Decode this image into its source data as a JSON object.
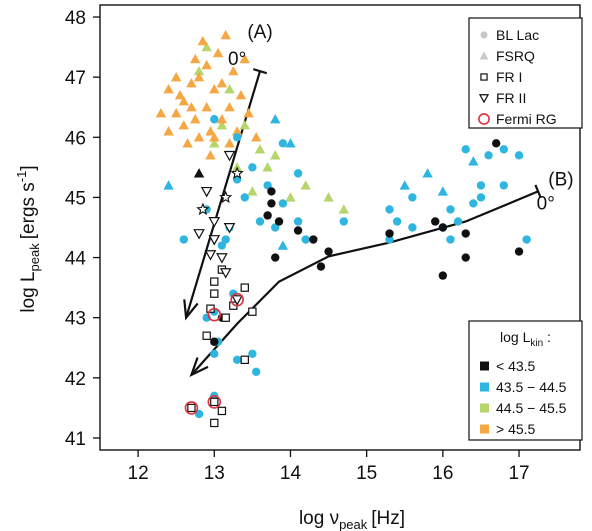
{
  "chart_data": {
    "type": "scatter",
    "xlabel": {
      "main": "log ν",
      "sub": "peak",
      "unit": "[Hz]"
    },
    "ylabel": {
      "main": "log L",
      "sub": "peak",
      "unit": "[ergs s",
      "sup": "-1",
      "close": "]"
    },
    "xlim": [
      11.5,
      17.8
    ],
    "ylim": [
      40.8,
      48.2
    ],
    "xticks": [
      "12",
      "13",
      "14",
      "15",
      "16",
      "17"
    ],
    "yticks": [
      "41",
      "42",
      "43",
      "44",
      "45",
      "46",
      "47",
      "48"
    ],
    "xtick_values": [
      12,
      13,
      14,
      15,
      16,
      17
    ],
    "ytick_values": [
      41,
      42,
      43,
      44,
      45,
      46,
      47,
      48
    ],
    "colors": {
      "black": "#111111",
      "cyan": "#2fb6e0",
      "green": "#b5d66a",
      "orange": "#f4a742",
      "red": "#e0323c"
    },
    "legend_top": {
      "placement": "top-right",
      "items": [
        {
          "label": "BL Lac",
          "marker": "circle"
        },
        {
          "label": "FSRQ",
          "marker": "triangle"
        },
        {
          "label": "FR I",
          "marker": "square-open"
        },
        {
          "label": "FR II",
          "marker": "triangle-down-open"
        },
        {
          "label": "Fermi RG",
          "marker": "circle-red"
        }
      ]
    },
    "legend_bottom": {
      "placement": "bottom-right",
      "title": {
        "main": "log L",
        "sub": "kin",
        "tail": " :"
      },
      "items": [
        {
          "label": "< 43.5",
          "color": "black"
        },
        {
          "label": "43.5 − 44.5",
          "color": "cyan"
        },
        {
          "label": "44.5 − 45.5",
          "color": "green"
        },
        {
          "label": "> 45.5",
          "color": "orange"
        }
      ]
    },
    "annotations": [
      {
        "label": "(A)",
        "x": 13.6,
        "y": 47.65
      },
      {
        "label": "0°",
        "x": 13.3,
        "y": 47.2
      },
      {
        "label": "(B)",
        "x": 17.55,
        "y": 45.2
      },
      {
        "label": "0°",
        "x": 17.35,
        "y": 44.8
      }
    ],
    "tracks": [
      {
        "name": "A",
        "points": [
          [
            13.6,
            47.1
          ],
          [
            12.63,
            43.0
          ]
        ],
        "arrow_end": true,
        "cap_start": true
      },
      {
        "name": "B",
        "points": [
          [
            17.25,
            45.1
          ],
          [
            16.3,
            44.6
          ],
          [
            15.3,
            44.25
          ],
          [
            14.5,
            44.02
          ],
          [
            13.85,
            43.6
          ],
          [
            13.3,
            42.9
          ],
          [
            12.7,
            42.05
          ]
        ],
        "arrow_end": true,
        "cap_start": true
      }
    ],
    "series": [
      {
        "kind": "BL Lac",
        "marker": "circle",
        "color": "cyan",
        "points": [
          [
            13.0,
            46.3
          ],
          [
            13.3,
            46.0
          ],
          [
            13.5,
            45.5
          ],
          [
            13.7,
            45.2
          ],
          [
            13.9,
            45.9
          ],
          [
            14.1,
            45.4
          ],
          [
            13.3,
            45.3
          ],
          [
            13.4,
            45.0
          ],
          [
            13.9,
            44.9
          ],
          [
            14.1,
            44.6
          ],
          [
            14.2,
            44.3
          ],
          [
            13.2,
            44.5
          ],
          [
            13.1,
            44.2
          ],
          [
            13.6,
            44.6
          ],
          [
            13.8,
            44.5
          ],
          [
            14.7,
            44.6
          ],
          [
            15.3,
            44.8
          ],
          [
            15.4,
            44.6
          ],
          [
            15.3,
            44.3
          ],
          [
            15.6,
            44.5
          ],
          [
            16.0,
            44.5
          ],
          [
            16.1,
            44.8
          ],
          [
            16.1,
            44.3
          ],
          [
            16.4,
            44.9
          ],
          [
            16.8,
            45.2
          ],
          [
            16.2,
            44.6
          ],
          [
            16.5,
            45.0
          ],
          [
            16.3,
            45.8
          ],
          [
            16.5,
            45.2
          ],
          [
            16.6,
            45.7
          ],
          [
            16.8,
            45.8
          ],
          [
            17.0,
            45.7
          ],
          [
            17.1,
            44.3
          ],
          [
            15.6,
            45.0
          ],
          [
            13.25,
            43.4
          ],
          [
            13.0,
            43.1
          ],
          [
            12.9,
            43.0
          ],
          [
            13.05,
            42.6
          ],
          [
            13.0,
            42.4
          ],
          [
            13.3,
            42.3
          ],
          [
            13.5,
            42.4
          ],
          [
            13.55,
            42.1
          ],
          [
            13.0,
            41.7
          ],
          [
            12.8,
            41.4
          ],
          [
            12.6,
            44.3
          ],
          [
            12.9,
            44.8
          ],
          [
            13.15,
            44.3
          ]
        ]
      },
      {
        "kind": "FSRQ",
        "marker": "triangle",
        "color": "orange",
        "points": [
          [
            12.3,
            46.4
          ],
          [
            12.4,
            46.8
          ],
          [
            12.5,
            47.0
          ],
          [
            12.6,
            46.2
          ],
          [
            12.6,
            46.6
          ],
          [
            12.7,
            46.9
          ],
          [
            12.75,
            47.3
          ],
          [
            12.8,
            46.0
          ],
          [
            12.8,
            47.0
          ],
          [
            12.85,
            47.6
          ],
          [
            12.9,
            46.5
          ],
          [
            12.9,
            47.2
          ],
          [
            12.95,
            46.1
          ],
          [
            13.0,
            46.8
          ],
          [
            13.05,
            47.4
          ],
          [
            13.1,
            46.3
          ],
          [
            13.1,
            46.9
          ],
          [
            13.15,
            47.7
          ],
          [
            13.2,
            46.5
          ],
          [
            13.25,
            47.1
          ],
          [
            13.3,
            46.1
          ],
          [
            13.35,
            46.7
          ],
          [
            13.4,
            47.3
          ],
          [
            12.5,
            46.4
          ],
          [
            12.65,
            45.9
          ],
          [
            12.7,
            46.5
          ],
          [
            13.0,
            46.0
          ],
          [
            12.95,
            45.7
          ],
          [
            13.2,
            45.9
          ],
          [
            13.45,
            46.4
          ],
          [
            13.55,
            46.0
          ],
          [
            12.4,
            46.1
          ],
          [
            12.55,
            46.7
          ],
          [
            12.75,
            46.3
          ]
        ]
      },
      {
        "kind": "FSRQ",
        "marker": "triangle",
        "color": "green",
        "points": [
          [
            12.9,
            47.5
          ],
          [
            12.8,
            47.1
          ],
          [
            13.2,
            46.8
          ],
          [
            13.1,
            46.2
          ],
          [
            13.4,
            46.2
          ],
          [
            13.6,
            45.8
          ],
          [
            13.7,
            45.5
          ],
          [
            14.0,
            45.0
          ],
          [
            13.8,
            45.7
          ],
          [
            13.3,
            45.5
          ],
          [
            14.2,
            45.2
          ],
          [
            14.5,
            45.0
          ],
          [
            14.7,
            44.8
          ],
          [
            13.5,
            45.1
          ],
          [
            13.0,
            45.9
          ]
        ]
      },
      {
        "kind": "FSRQ",
        "marker": "triangle",
        "color": "cyan",
        "points": [
          [
            12.4,
            45.2
          ],
          [
            13.8,
            46.3
          ],
          [
            14.0,
            45.9
          ],
          [
            15.5,
            45.2
          ],
          [
            15.8,
            45.4
          ],
          [
            16.4,
            45.6
          ],
          [
            16.0,
            45.1
          ],
          [
            13.9,
            44.2
          ]
        ]
      },
      {
        "kind": "FSRQ",
        "marker": "triangle",
        "color": "black",
        "points": [
          [
            12.8,
            45.4
          ]
        ]
      },
      {
        "kind": "BL Lac",
        "marker": "circle",
        "color": "black",
        "points": [
          [
            13.75,
            45.1
          ],
          [
            13.75,
            44.9
          ],
          [
            13.7,
            44.7
          ],
          [
            13.85,
            44.6
          ],
          [
            14.1,
            44.45
          ],
          [
            14.3,
            44.3
          ],
          [
            14.5,
            44.1
          ],
          [
            14.4,
            43.85
          ],
          [
            13.8,
            44.0
          ],
          [
            13.1,
            43.0
          ],
          [
            13.0,
            42.6
          ],
          [
            15.3,
            44.4
          ],
          [
            15.9,
            44.6
          ],
          [
            16.0,
            44.5
          ],
          [
            16.3,
            44.4
          ],
          [
            16.7,
            45.9
          ],
          [
            16.0,
            43.7
          ],
          [
            16.3,
            44.0
          ],
          [
            17.0,
            44.1
          ]
        ]
      },
      {
        "kind": "FR I",
        "marker": "square-open",
        "color": "black",
        "points": [
          [
            13.0,
            43.6
          ],
          [
            13.1,
            43.8
          ],
          [
            13.0,
            43.4
          ],
          [
            13.15,
            43.0
          ],
          [
            13.4,
            43.5
          ],
          [
            13.5,
            43.1
          ],
          [
            13.25,
            43.2
          ],
          [
            12.95,
            43.15
          ],
          [
            12.9,
            42.7
          ],
          [
            13.4,
            42.3
          ],
          [
            12.7,
            41.5
          ],
          [
            13.0,
            41.6
          ],
          [
            13.1,
            41.45
          ],
          [
            13.0,
            41.25
          ]
        ]
      },
      {
        "kind": "FR II",
        "marker": "triangle-down-open",
        "color": "black",
        "points": [
          [
            13.0,
            44.6
          ],
          [
            13.2,
            44.5
          ],
          [
            13.0,
            44.3
          ],
          [
            12.8,
            44.4
          ],
          [
            13.1,
            44.0
          ],
          [
            13.3,
            43.3
          ],
          [
            13.15,
            43.75
          ],
          [
            12.95,
            44.05
          ],
          [
            12.9,
            45.1
          ],
          [
            13.2,
            45.7
          ]
        ]
      },
      {
        "kind": "FR II",
        "marker": "star-open",
        "color": "black",
        "points": [
          [
            12.85,
            44.8
          ],
          [
            13.15,
            45.0
          ],
          [
            13.3,
            45.4
          ]
        ]
      },
      {
        "kind": "Fermi RG",
        "marker": "circle-red",
        "color": "red",
        "points": [
          [
            12.7,
            41.5
          ],
          [
            13.0,
            41.6
          ],
          [
            13.3,
            43.3
          ],
          [
            13.0,
            43.05
          ]
        ]
      }
    ]
  }
}
